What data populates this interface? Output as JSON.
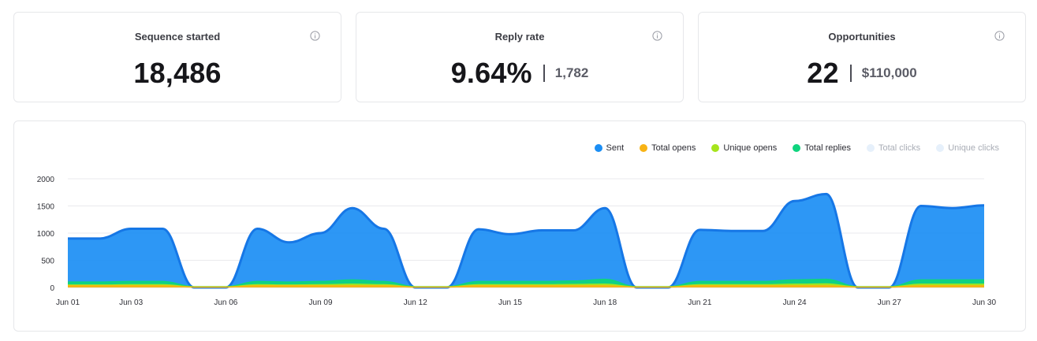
{
  "kpis": [
    {
      "title": "Sequence started",
      "value": "18,486",
      "sub": ""
    },
    {
      "title": "Reply rate",
      "value": "9.64%",
      "sub": "1,782"
    },
    {
      "title": "Opportunities",
      "value": "22",
      "sub": "$110,000"
    }
  ],
  "chart_data": {
    "type": "area",
    "legend_position": "top-right",
    "grid": true,
    "ylim": [
      0,
      2000
    ],
    "yticks": [
      0,
      500,
      1000,
      1500,
      2000
    ],
    "xlabels": [
      "Jun 01",
      "Jun 03",
      "Jun 06",
      "Jun 09",
      "Jun 12",
      "Jun 15",
      "Jun 18",
      "Jun 21",
      "Jun 24",
      "Jun 27",
      "Jun 30"
    ],
    "xlabel_days": [
      1,
      3,
      6,
      9,
      12,
      15,
      18,
      21,
      24,
      27,
      30
    ],
    "days": [
      1,
      2,
      3,
      4,
      5,
      6,
      7,
      8,
      9,
      10,
      11,
      12,
      13,
      14,
      15,
      16,
      17,
      18,
      19,
      20,
      21,
      22,
      23,
      24,
      25,
      26,
      27,
      28,
      29,
      30
    ],
    "series": [
      {
        "name": "Sent",
        "color": "#1b8ef4",
        "visible": true,
        "values": [
          900,
          900,
          1080,
          1080,
          0,
          0,
          1080,
          830,
          1000,
          1460,
          1080,
          0,
          0,
          1070,
          980,
          1050,
          1050,
          1460,
          0,
          0,
          1060,
          1040,
          1040,
          1590,
          1720,
          0,
          0,
          1500,
          1460,
          1510
        ]
      },
      {
        "name": "Total opens",
        "color": "#f8b315",
        "visible": true,
        "values": [
          30,
          30,
          30,
          30,
          5,
          5,
          30,
          30,
          30,
          30,
          30,
          5,
          5,
          30,
          30,
          30,
          30,
          30,
          5,
          5,
          30,
          30,
          30,
          30,
          30,
          5,
          5,
          30,
          30,
          30
        ]
      },
      {
        "name": "Unique opens",
        "color": "#a6e41c",
        "visible": true,
        "values": [
          45,
          45,
          50,
          50,
          10,
          10,
          50,
          45,
          50,
          60,
          50,
          10,
          10,
          50,
          50,
          50,
          55,
          60,
          10,
          10,
          50,
          50,
          50,
          60,
          65,
          10,
          10,
          60,
          60,
          60
        ]
      },
      {
        "name": "Total replies",
        "color": "#0fd47e",
        "visible": true,
        "values": [
          100,
          100,
          110,
          110,
          15,
          15,
          110,
          100,
          110,
          140,
          110,
          15,
          15,
          110,
          110,
          110,
          120,
          150,
          15,
          15,
          110,
          110,
          110,
          140,
          150,
          15,
          15,
          140,
          140,
          140
        ]
      },
      {
        "name": "Total clicks",
        "color": "#e6f0fb",
        "visible": false,
        "values": []
      },
      {
        "name": "Unique clicks",
        "color": "#e6f0fb",
        "visible": false,
        "values": []
      }
    ]
  }
}
